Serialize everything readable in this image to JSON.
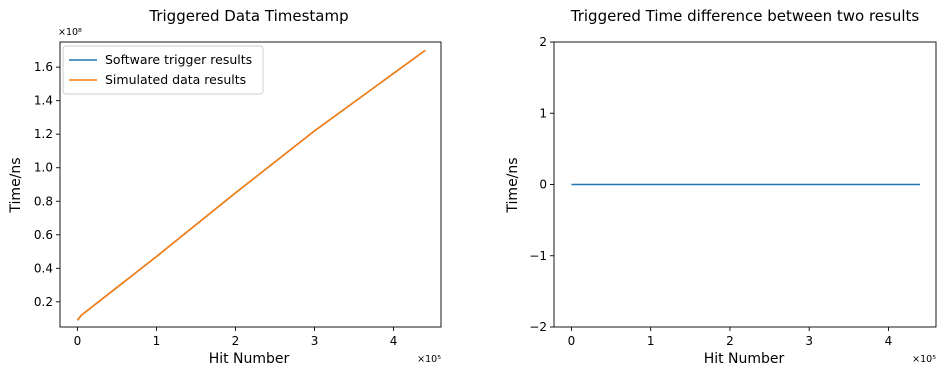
{
  "chart_data": [
    {
      "type": "line",
      "title": "Triggered Data Timestamp",
      "xlabel": "Hit Number",
      "ylabel": "Time/ns",
      "x_multiplier": "×10⁵",
      "y_multiplier": "×10⁸",
      "xlim": [
        -0.22,
        4.6
      ],
      "ylim": [
        0.05,
        1.75
      ],
      "xticks": [
        0,
        1,
        2,
        3,
        4
      ],
      "xtick_labels": [
        "0",
        "1",
        "2",
        "3",
        "4"
      ],
      "yticks": [
        0.2,
        0.4,
        0.6,
        0.8,
        1.0,
        1.2,
        1.4,
        1.6
      ],
      "ytick_labels": [
        "0.2",
        "0.4",
        "0.6",
        "0.8",
        "1.0",
        "1.2",
        "1.4",
        "1.6"
      ],
      "legend_position": "top-left",
      "series": [
        {
          "name": "Software trigger results",
          "color": "#1f77b4",
          "x": [
            0,
            0.05,
            1.0,
            2.0,
            3.0,
            4.4
          ],
          "y": [
            0.09,
            0.12,
            0.47,
            0.85,
            1.22,
            1.7
          ]
        },
        {
          "name": "Simulated data results",
          "color": "#ff7f0e",
          "x": [
            0,
            0.05,
            1.0,
            2.0,
            3.0,
            4.4
          ],
          "y": [
            0.09,
            0.12,
            0.47,
            0.85,
            1.22,
            1.7
          ]
        }
      ]
    },
    {
      "type": "line",
      "title": "Triggered Time difference between two results",
      "xlabel": "Hit Number",
      "ylabel": "Time/ns",
      "x_multiplier": "×10⁵",
      "xlim": [
        -0.22,
        4.6
      ],
      "ylim": [
        -2,
        2
      ],
      "xticks": [
        0,
        1,
        2,
        3,
        4
      ],
      "xtick_labels": [
        "0",
        "1",
        "2",
        "3",
        "4"
      ],
      "yticks": [
        -2,
        -1,
        0,
        1,
        2
      ],
      "ytick_labels": [
        "−2",
        "−1",
        "0",
        "1",
        "2"
      ],
      "series": [
        {
          "color": "#1f77b4",
          "x": [
            0,
            4.4
          ],
          "y": [
            0,
            0
          ]
        }
      ]
    }
  ]
}
